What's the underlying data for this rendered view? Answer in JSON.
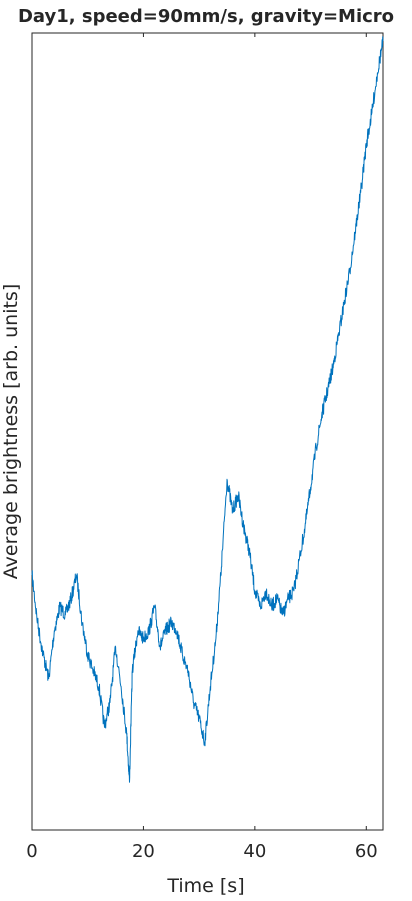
{
  "chart_data": {
    "type": "line",
    "title": "Day1, speed=90mm/s, gravity=Micro",
    "xlabel": "Time [s]",
    "ylabel": "Average brightness [arb. units]",
    "xlim": [
      0,
      63
    ],
    "ylim": [
      0,
      100
    ],
    "xticks": [
      0,
      20,
      40,
      60
    ],
    "yticks": [],
    "grid": false,
    "legend": "none",
    "series": [
      {
        "color": "#0072BD",
        "x": [
          0,
          1,
          2,
          3,
          4,
          5,
          6,
          7,
          8,
          9,
          10,
          11,
          12,
          13,
          14,
          15,
          16,
          17,
          17.5,
          18,
          19,
          20,
          21,
          22,
          23,
          24,
          25,
          26,
          27,
          28,
          29,
          30,
          31,
          32,
          33,
          34,
          35,
          36,
          37,
          38,
          39,
          40,
          41,
          42,
          43,
          44,
          45,
          46,
          47,
          48,
          49,
          50,
          51,
          52,
          53,
          54,
          55,
          56,
          57,
          58,
          59,
          60,
          61,
          62,
          63
        ],
        "y": [
          32,
          26,
          22,
          19,
          25,
          28,
          27,
          29,
          32,
          26,
          22,
          20,
          18,
          13,
          16,
          23,
          18,
          12,
          6,
          20,
          25,
          24,
          25,
          28,
          23,
          25,
          26,
          25,
          22,
          20,
          16,
          14,
          11,
          18,
          24,
          33,
          44,
          40,
          42,
          38,
          35,
          30,
          28,
          30,
          28,
          29,
          27,
          29,
          30,
          34,
          38,
          43,
          48,
          52,
          55,
          58,
          62,
          66,
          70,
          75,
          80,
          86,
          90,
          95,
          99
        ]
      }
    ]
  }
}
